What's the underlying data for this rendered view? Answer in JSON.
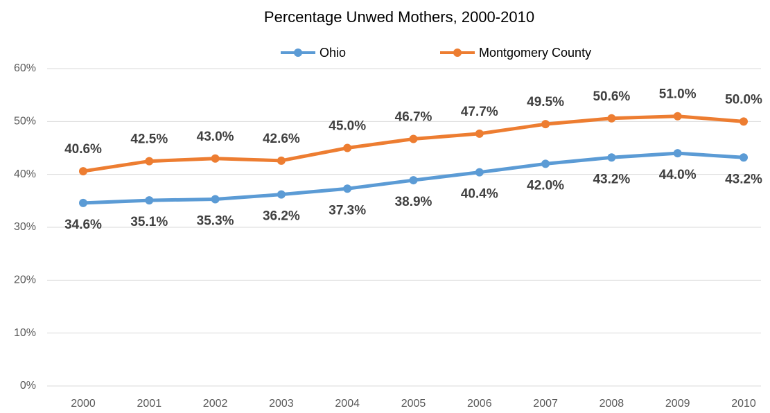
{
  "chart_data": {
    "type": "line",
    "title": "Percentage Unwed Mothers, 2000-2010",
    "categories": [
      "2000",
      "2001",
      "2002",
      "2003",
      "2004",
      "2005",
      "2006",
      "2007",
      "2008",
      "2009",
      "2010"
    ],
    "series": [
      {
        "name": "Ohio",
        "color": "#5b9bd5",
        "values": [
          34.6,
          35.1,
          35.3,
          36.2,
          37.3,
          38.9,
          40.4,
          42.0,
          43.2,
          44.0,
          43.2
        ],
        "value_labels": [
          "34.6%",
          "35.1%",
          "35.3%",
          "36.2%",
          "37.3%",
          "38.9%",
          "40.4%",
          "42.0%",
          "43.2%",
          "44.0%",
          "43.2%"
        ]
      },
      {
        "name": "Montgomery County",
        "color": "#ed7d31",
        "values": [
          40.6,
          42.5,
          43.0,
          42.6,
          45.0,
          46.7,
          47.7,
          49.5,
          50.6,
          51.0,
          50.0
        ],
        "value_labels": [
          "40.6%",
          "42.5%",
          "43.0%",
          "42.6%",
          "45.0%",
          "46.7%",
          "47.7%",
          "49.5%",
          "50.6%",
          "51.0%",
          "50.0%"
        ]
      }
    ],
    "ylim": [
      0,
      60
    ],
    "yticks": [
      {
        "value": 0,
        "label": "0%"
      },
      {
        "value": 10,
        "label": "10%"
      },
      {
        "value": 20,
        "label": "20%"
      },
      {
        "value": 30,
        "label": "30%"
      },
      {
        "value": 40,
        "label": "40%"
      },
      {
        "value": 50,
        "label": "50%"
      },
      {
        "value": 60,
        "label": "60%"
      }
    ],
    "grid": true,
    "legend": "top"
  }
}
